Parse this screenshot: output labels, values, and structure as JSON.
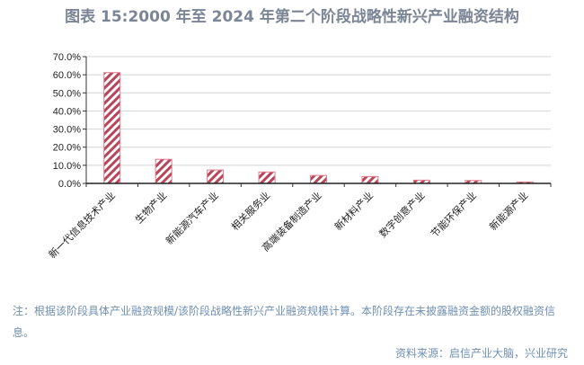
{
  "title": "图表 15:2000 年至 2024 年第二个阶段战略性新兴产业融资结构",
  "note": "注：根据该阶段具体产业融资规模/该阶段战略性新兴产业融资规模计算。本阶段存在未披露融资金额的股权融资信息。",
  "source": "资料来源：启信产业大脑，兴业研究",
  "chart_data": {
    "type": "bar",
    "categories": [
      "新一代信息技术产业",
      "生物产业",
      "新能源汽车产业",
      "相关服务业",
      "高端装备制造产业",
      "新材料产业",
      "数字创意产业",
      "节能环保产业",
      "新能源产业"
    ],
    "values": [
      61.2,
      13.3,
      7.4,
      6.3,
      4.4,
      3.8,
      1.8,
      1.6,
      0.8
    ],
    "yticks": [
      "0.0%",
      "10.0%",
      "20.0%",
      "30.0%",
      "40.0%",
      "50.0%",
      "60.0%",
      "70.0%"
    ],
    "ylim": [
      0,
      70
    ],
    "grid": true,
    "bar_style": "diagonal hatch",
    "color": "#b8455a"
  }
}
